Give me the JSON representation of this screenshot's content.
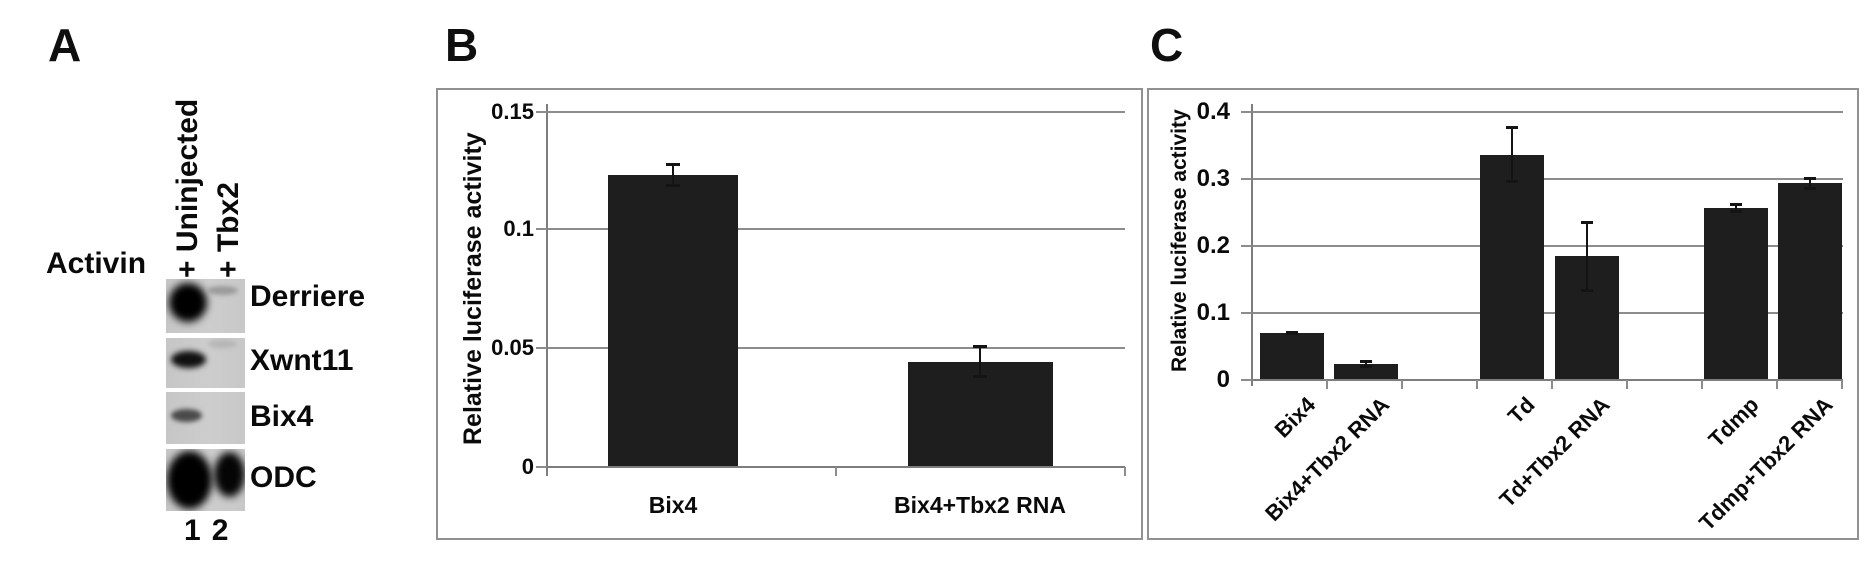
{
  "figure_labels": {
    "panelA": "A",
    "panelB": "B",
    "panelC": "C"
  },
  "panelA": {
    "treatment": "Activin",
    "lane_labels": [
      "+ Uninjected",
      "+ Tbx2"
    ],
    "probes": [
      "Derriere",
      "Xwnt11",
      "Bix4",
      "ODC"
    ],
    "lane_numbers": [
      "1",
      "2"
    ],
    "band_pattern": [
      {
        "probe": "Derriere",
        "lane1": "strong",
        "lane2": "faint"
      },
      {
        "probe": "Xwnt11",
        "lane1": "moderate",
        "lane2": "very faint"
      },
      {
        "probe": "Bix4",
        "lane1": "weak",
        "lane2": "none"
      },
      {
        "probe": "ODC",
        "lane1": "strong",
        "lane2": "strong"
      }
    ]
  },
  "chart_data": [
    {
      "id": "B",
      "type": "bar",
      "title": "",
      "xlabel": "",
      "ylabel": "Relative luciferase activity",
      "categories": [
        "Bix4",
        "Bix4+Tbx2 RNA"
      ],
      "values": [
        0.123,
        0.044
      ],
      "errors": [
        0.005,
        0.007
      ],
      "ylim": [
        0,
        0.15
      ],
      "yticks": [
        0,
        0.05,
        0.1,
        0.15
      ],
      "ytick_labels": [
        "0",
        "0.05",
        "0.1",
        "0.15"
      ],
      "grid": true,
      "legend": "none",
      "bar_color": "#1e1e1e"
    },
    {
      "id": "C",
      "type": "bar",
      "title": "",
      "xlabel": "",
      "ylabel": "Relative luciferase activity",
      "categories": [
        "Bix4",
        "Bix4+Tbx2 RNA",
        "Td",
        "Td+Tbx2 RNA",
        "Tdmp",
        "Tdmp+Tbx2 RNA"
      ],
      "values": [
        0.068,
        0.023,
        0.335,
        0.183,
        0.255,
        0.292
      ],
      "errors": [
        0.003,
        0.006,
        0.042,
        0.053,
        0.007,
        0.01
      ],
      "ylim": [
        0,
        0.4
      ],
      "yticks": [
        0,
        0.1,
        0.2,
        0.3,
        0.4
      ],
      "ytick_labels": [
        "0",
        "0.1",
        "0.2",
        "0.3",
        "0.4"
      ],
      "grid": true,
      "legend": "none",
      "bar_color": "#1e1e1e"
    }
  ]
}
